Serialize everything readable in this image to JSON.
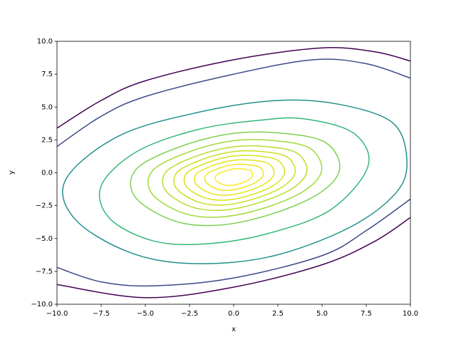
{
  "chart_data": {
    "type": "contour",
    "xlabel": "x",
    "ylabel": "y",
    "xlim": [
      -10,
      10
    ],
    "ylim": [
      -10,
      10
    ],
    "xticks": [
      {
        "value": -10,
        "label": "−10.0"
      },
      {
        "value": -7.5,
        "label": "−7.5"
      },
      {
        "value": -5,
        "label": "−5.0"
      },
      {
        "value": -2.5,
        "label": "−2.5"
      },
      {
        "value": 0,
        "label": "0.0"
      },
      2.5,
      {
        "value": 5,
        "label": "5.0"
      },
      7.5,
      {
        "value": 10,
        "label": "10.0"
      }
    ],
    "yticks": [
      {
        "value": -10,
        "label": "−10.0"
      },
      {
        "value": -7.5,
        "label": "−7.5"
      },
      {
        "value": -5,
        "label": "−5.0"
      },
      {
        "value": -2.5,
        "label": "−2.5"
      },
      {
        "value": 0,
        "label": "0.0"
      },
      2.5,
      {
        "value": 5,
        "label": "5.0"
      },
      7.5,
      {
        "value": 10,
        "label": "10.0"
      }
    ],
    "contours": [
      {
        "color": "#440154",
        "closed": false,
        "x": [
          -10,
          -7.5,
          -5,
          0,
          5,
          8,
          10,
          null,
          -10,
          -5,
          0,
          5,
          8,
          10
        ],
        "y": [
          3.4,
          5.5,
          7.0,
          8.6,
          9.5,
          9.2,
          8.5,
          null,
          -8.5,
          -9.5,
          -8.7,
          -7.0,
          -5.2,
          -3.4
        ]
      },
      {
        "color": "#3e4a89",
        "closed": false,
        "x": [
          -10,
          -7.5,
          -5,
          0,
          4.5,
          7.5,
          10,
          null,
          -10,
          -7.5,
          -4.5,
          0,
          5,
          7.5,
          10
        ],
        "y": [
          2.0,
          4.3,
          5.8,
          7.5,
          8.6,
          8.3,
          7.2,
          null,
          -7.2,
          -8.3,
          -8.6,
          -8.0,
          -6.3,
          -4.4,
          -2.0
        ]
      },
      {
        "color": "#21918c",
        "closed": true,
        "x": [
          9.8,
          9.0,
          6,
          2.5,
          -2,
          -6.5,
          -9.5,
          -9.0,
          -6,
          -2.5,
          2,
          6.5,
          9.2
        ],
        "y": [
          1.0,
          3.8,
          5.2,
          5.5,
          4.6,
          2.8,
          -0.5,
          -3.5,
          -6.0,
          -6.9,
          -6.4,
          -4.2,
          -1.5
        ]
      },
      {
        "color": "#35b779",
        "closed": true,
        "x": [
          7.6,
          6.8,
          4,
          1.5,
          -2,
          -5.5,
          -7.5,
          -7,
          -4.5,
          -1.5,
          2,
          5.5
        ],
        "y": [
          0.5,
          3.0,
          4.1,
          4.0,
          3.3,
          1.6,
          -1.0,
          -3.5,
          -5.2,
          -5.4,
          -4.6,
          -2.8
        ]
      },
      {
        "color": "#7ad151",
        "closed": true,
        "x": [
          6.0,
          5.2,
          2.8,
          0,
          -3,
          -5.5,
          -5.6,
          -3.5,
          -1,
          2,
          4.8
        ],
        "y": [
          0.3,
          2.3,
          3.0,
          3.0,
          2.0,
          0.3,
          -1.8,
          -3.6,
          -4.0,
          -3.2,
          -1.6
        ]
      },
      {
        "color": "#a0da39",
        "closed": true,
        "x": [
          4.98,
          4.32,
          2.32,
          0,
          -2.49,
          -4.57,
          -4.65,
          -2.91,
          -0.83,
          1.66,
          3.98
        ],
        "y": [
          0.2,
          1.86,
          2.44,
          2.44,
          1.61,
          0.2,
          -1.55,
          -3.04,
          -3.37,
          -2.71,
          -1.38
        ]
      },
      {
        "color": "#b5de2b",
        "closed": true,
        "x": [
          4.14,
          3.59,
          1.93,
          0,
          -2.07,
          -3.8,
          -3.86,
          -2.42,
          -0.69,
          1.38,
          3.31
        ],
        "y": [
          0.11,
          1.49,
          1.98,
          1.98,
          1.29,
          0.11,
          -1.34,
          -2.58,
          -2.85,
          -2.3,
          -1.2
        ]
      },
      {
        "color": "#c8e020",
        "closed": true,
        "x": [
          3.48,
          3.02,
          1.62,
          0,
          -1.74,
          -3.19,
          -3.25,
          -2.03,
          -0.58,
          1.16,
          2.78
        ],
        "y": [
          0.05,
          1.21,
          1.61,
          1.61,
          1.03,
          0.05,
          -1.17,
          -2.21,
          -2.45,
          -1.98,
          -1.05
        ]
      },
      {
        "color": "#d8e219",
        "closed": true,
        "x": [
          2.88,
          2.5,
          1.34,
          0,
          -1.44,
          -2.64,
          -2.69,
          -1.68,
          -0.48,
          0.96,
          2.3
        ],
        "y": [
          -0.01,
          0.95,
          1.28,
          1.28,
          0.8,
          -0.01,
          -1.02,
          -1.88,
          -2.08,
          -1.69,
          -0.92
        ]
      },
      {
        "color": "#e5e419",
        "closed": true,
        "x": [
          2.28,
          1.98,
          1.06,
          0,
          -1.14,
          -2.09,
          -2.13,
          -1.33,
          -0.38,
          0.76,
          1.82
        ],
        "y": [
          -0.07,
          0.69,
          0.95,
          0.95,
          0.57,
          -0.07,
          -0.87,
          -1.55,
          -1.71,
          -1.4,
          -0.79
        ]
      },
      {
        "color": "#f1e51d",
        "closed": true,
        "x": [
          1.68,
          1.46,
          0.78,
          0,
          -0.84,
          -1.54,
          -1.57,
          -0.98,
          -0.28,
          0.56,
          1.34
        ],
        "y": [
          -0.13,
          0.43,
          0.62,
          0.62,
          0.34,
          -0.13,
          -0.72,
          -1.22,
          -1.34,
          -1.11,
          -0.66
        ]
      },
      {
        "color": "#fde725",
        "closed": true,
        "x": [
          1.08,
          0.94,
          0.5,
          0,
          -0.54,
          -0.99,
          -1.01,
          -0.63,
          -0.18,
          0.36,
          0.86
        ],
        "y": [
          -0.19,
          0.17,
          0.29,
          0.29,
          0.11,
          -0.19,
          -0.57,
          -0.89,
          -0.97,
          -0.82,
          -0.53
        ]
      }
    ]
  }
}
